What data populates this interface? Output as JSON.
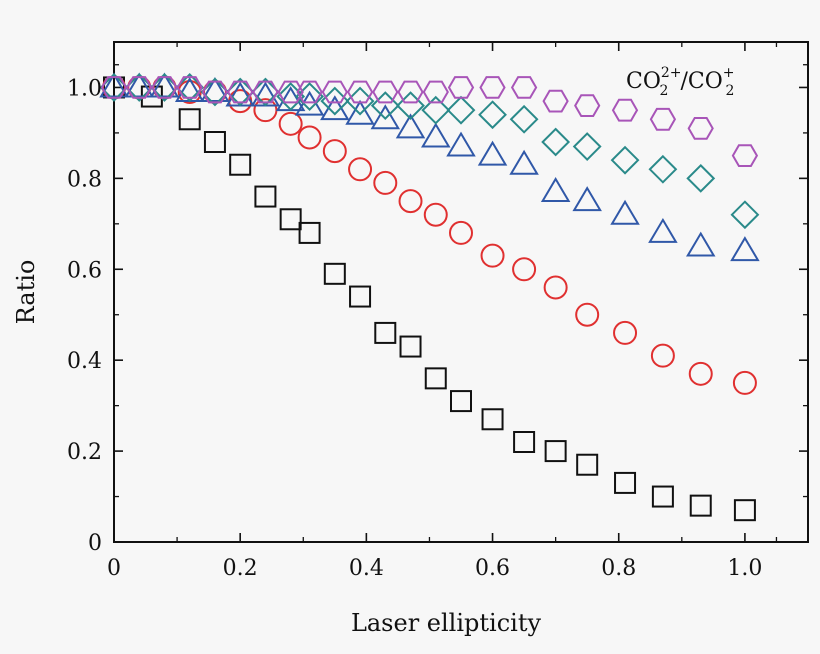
{
  "chart_data": {
    "type": "scatter",
    "xlabel": "Laser ellipticity",
    "ylabel": "Ratio",
    "xlim": [
      0,
      1.1
    ],
    "ylim": [
      0,
      1.1
    ],
    "xticks": [
      0,
      0.2,
      0.4,
      0.6,
      0.8,
      1.0
    ],
    "xtick_labels": [
      "0",
      "0.2",
      "0.4",
      "0.6",
      "0.8",
      "1.0"
    ],
    "yticks": [
      0,
      0.2,
      0.4,
      0.6,
      0.8,
      1.0
    ],
    "ytick_labels": [
      "0",
      "0.2",
      "0.4",
      "0.6",
      "0.8",
      "1.0"
    ],
    "annotation": {
      "numerator_base": "CO",
      "numerator_sub": "2",
      "numerator_sup": "2+",
      "slash": "/",
      "denominator_base": "CO",
      "denominator_sub": "2",
      "denominator_sup": "+"
    },
    "series": [
      {
        "name": "squares",
        "marker": "square",
        "color": "#111111",
        "x": [
          0,
          0.06,
          0.12,
          0.16,
          0.2,
          0.24,
          0.28,
          0.31,
          0.35,
          0.39,
          0.43,
          0.47,
          0.51,
          0.55,
          0.6,
          0.65,
          0.7,
          0.75,
          0.81,
          0.87,
          0.93,
          1.0
        ],
        "y": [
          1.0,
          0.98,
          0.93,
          0.88,
          0.83,
          0.76,
          0.71,
          0.68,
          0.59,
          0.54,
          0.46,
          0.43,
          0.36,
          0.31,
          0.27,
          0.22,
          0.2,
          0.17,
          0.13,
          0.1,
          0.08,
          0.07
        ]
      },
      {
        "name": "circles",
        "marker": "circle",
        "color": "#e03030",
        "x": [
          0,
          0.04,
          0.08,
          0.12,
          0.16,
          0.2,
          0.24,
          0.28,
          0.31,
          0.35,
          0.39,
          0.43,
          0.47,
          0.51,
          0.55,
          0.6,
          0.65,
          0.7,
          0.75,
          0.81,
          0.87,
          0.93,
          1.0
        ],
        "y": [
          1.0,
          1.0,
          1.0,
          0.99,
          0.99,
          0.97,
          0.95,
          0.92,
          0.89,
          0.86,
          0.82,
          0.79,
          0.75,
          0.72,
          0.68,
          0.63,
          0.6,
          0.56,
          0.5,
          0.46,
          0.41,
          0.37,
          0.35
        ]
      },
      {
        "name": "triangles",
        "marker": "triangle",
        "color": "#3058a8",
        "x": [
          0,
          0.04,
          0.08,
          0.12,
          0.16,
          0.2,
          0.24,
          0.28,
          0.31,
          0.35,
          0.39,
          0.43,
          0.47,
          0.51,
          0.55,
          0.6,
          0.65,
          0.7,
          0.75,
          0.81,
          0.87,
          0.93,
          1.0
        ],
        "y": [
          1.0,
          1.0,
          1.0,
          0.99,
          0.99,
          0.98,
          0.98,
          0.97,
          0.96,
          0.95,
          0.94,
          0.93,
          0.91,
          0.89,
          0.87,
          0.85,
          0.83,
          0.77,
          0.75,
          0.72,
          0.68,
          0.65,
          0.64
        ]
      },
      {
        "name": "diamonds",
        "marker": "diamond",
        "color": "#2a8a8a",
        "x": [
          0,
          0.04,
          0.08,
          0.12,
          0.16,
          0.2,
          0.24,
          0.28,
          0.31,
          0.35,
          0.39,
          0.43,
          0.47,
          0.51,
          0.55,
          0.6,
          0.65,
          0.7,
          0.75,
          0.81,
          0.87,
          0.93,
          1.0
        ],
        "y": [
          1.0,
          1.0,
          1.0,
          1.0,
          0.99,
          0.99,
          0.99,
          0.98,
          0.98,
          0.97,
          0.97,
          0.96,
          0.96,
          0.95,
          0.95,
          0.94,
          0.93,
          0.88,
          0.87,
          0.84,
          0.82,
          0.8,
          0.72
        ]
      },
      {
        "name": "hexagons",
        "marker": "hexagon",
        "color": "#a855b8",
        "x": [
          0,
          0.04,
          0.08,
          0.12,
          0.16,
          0.2,
          0.24,
          0.28,
          0.31,
          0.35,
          0.39,
          0.43,
          0.47,
          0.51,
          0.55,
          0.6,
          0.65,
          0.7,
          0.75,
          0.81,
          0.87,
          0.93,
          1.0
        ],
        "y": [
          1.0,
          1.0,
          1.0,
          1.0,
          0.99,
          0.99,
          0.99,
          0.99,
          0.99,
          0.99,
          0.99,
          0.99,
          0.99,
          0.99,
          1.0,
          1.0,
          1.0,
          0.97,
          0.96,
          0.95,
          0.93,
          0.91,
          0.85
        ]
      }
    ]
  }
}
